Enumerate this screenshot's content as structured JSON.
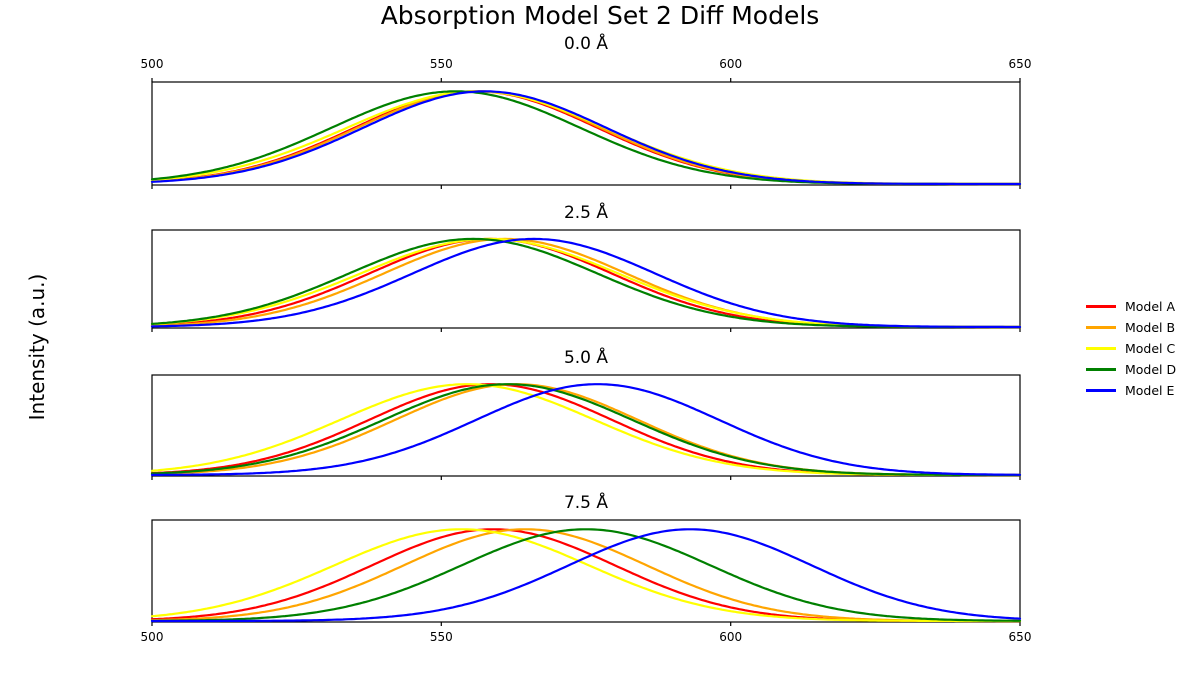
{
  "chart_data": {
    "type": "line",
    "title": "Absorption Model Set 2 Diff Models",
    "ylabel": "Intensity (a.u.)",
    "xlabel": "",
    "x_unit": "Å",
    "x_range": [
      500,
      650
    ],
    "x_tick_labels": [
      "500",
      "550",
      "600",
      "650"
    ],
    "x_tick_values": [
      500,
      550,
      600,
      650
    ],
    "ylim": [
      0,
      1.09
    ],
    "grid": false,
    "legend_position": "outside-center-right",
    "curve_shape": "gaussian",
    "amplitude": 1.0,
    "models": [
      {
        "name": "Model A",
        "color": "#ff0000"
      },
      {
        "name": "Model B",
        "color": "#ffa500"
      },
      {
        "name": "Model C",
        "color": "#ffff00"
      },
      {
        "name": "Model D",
        "color": "#008000"
      },
      {
        "name": "Model E",
        "color": "#0000ff"
      }
    ],
    "subplots": [
      {
        "title": "0.0 Å",
        "offset_angstrom": 0.0,
        "centers": [
          556.0,
          556.5,
          556.0,
          552.5,
          557.5
        ],
        "sigmas": [
          21.0,
          21.0,
          22.3,
          21.5,
          21.0
        ]
      },
      {
        "title": "2.5 Å",
        "offset_angstrom": 2.5,
        "centers": [
          558.5,
          561.0,
          558.3,
          555.5,
          566.0
        ],
        "sigmas": [
          21.0,
          21.0,
          22.3,
          21.5,
          21.0
        ]
      },
      {
        "title": "5.0 Å",
        "offset_angstrom": 5.0,
        "centers": [
          558.5,
          563.0,
          554.5,
          561.5,
          577.0
        ],
        "sigmas": [
          21.0,
          21.0,
          22.0,
          21.5,
          21.0
        ]
      },
      {
        "title": "7.5 Å",
        "offset_angstrom": 7.5,
        "centers": [
          559.0,
          564.5,
          553.5,
          575.0,
          593.0
        ],
        "sigmas": [
          21.0,
          21.0,
          22.0,
          21.5,
          21.0
        ]
      }
    ]
  }
}
